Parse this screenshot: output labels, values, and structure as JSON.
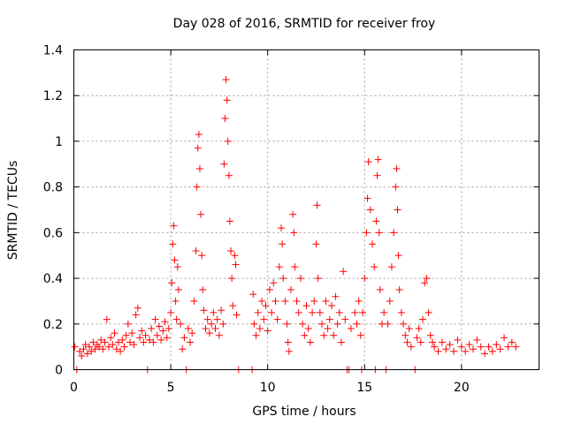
{
  "chart_data": {
    "type": "scatter",
    "title": "Day 028 of 2016, SRMTID for receiver froy",
    "xlabel": "GPS time / hours",
    "ylabel": "SRMTID / TECUs",
    "xlim": [
      0,
      24
    ],
    "ylim": [
      0,
      1.4
    ],
    "xticks": [
      0,
      5,
      10,
      15,
      20
    ],
    "xtick_labels": [
      "0",
      "5",
      "10",
      "15",
      "20"
    ],
    "yticks": [
      0,
      0.2,
      0.4,
      0.6,
      0.8,
      1.0,
      1.2,
      1.4
    ],
    "ytick_labels": [
      "0",
      "0.2",
      "0.4",
      "0.6",
      "0.8",
      "1",
      "1.2",
      "1.4"
    ],
    "grid": true,
    "marker": "plus",
    "color": "#ff0000",
    "series": [
      {
        "name": "SRMTID",
        "points": [
          [
            0.05,
            0.1
          ],
          [
            0.15,
            0.0
          ],
          [
            0.3,
            0.08
          ],
          [
            0.4,
            0.06
          ],
          [
            0.5,
            0.09
          ],
          [
            0.6,
            0.11
          ],
          [
            0.7,
            0.07
          ],
          [
            0.8,
            0.1
          ],
          [
            0.9,
            0.08
          ],
          [
            1.0,
            0.12
          ],
          [
            1.1,
            0.09
          ],
          [
            1.2,
            0.11
          ],
          [
            1.3,
            0.1
          ],
          [
            1.4,
            0.13
          ],
          [
            1.5,
            0.09
          ],
          [
            1.6,
            0.12
          ],
          [
            1.7,
            0.22
          ],
          [
            1.8,
            0.1
          ],
          [
            1.9,
            0.14
          ],
          [
            2.0,
            0.11
          ],
          [
            2.1,
            0.16
          ],
          [
            2.2,
            0.09
          ],
          [
            2.3,
            0.12
          ],
          [
            2.4,
            0.08
          ],
          [
            2.5,
            0.13
          ],
          [
            2.6,
            0.1
          ],
          [
            2.7,
            0.15
          ],
          [
            2.8,
            0.2
          ],
          [
            2.9,
            0.12
          ],
          [
            3.0,
            0.16
          ],
          [
            3.1,
            0.11
          ],
          [
            3.2,
            0.24
          ],
          [
            3.3,
            0.27
          ],
          [
            3.4,
            0.14
          ],
          [
            3.5,
            0.17
          ],
          [
            3.6,
            0.12
          ],
          [
            3.7,
            0.15
          ],
          [
            3.8,
            0.0
          ],
          [
            3.9,
            0.13
          ],
          [
            4.0,
            0.18
          ],
          [
            4.1,
            0.12
          ],
          [
            4.2,
            0.22
          ],
          [
            4.3,
            0.15
          ],
          [
            4.4,
            0.19
          ],
          [
            4.5,
            0.13
          ],
          [
            4.6,
            0.17
          ],
          [
            4.7,
            0.21
          ],
          [
            4.8,
            0.14
          ],
          [
            4.9,
            0.18
          ],
          [
            5.0,
            0.25
          ],
          [
            5.05,
            0.38
          ],
          [
            5.1,
            0.55
          ],
          [
            5.15,
            0.63
          ],
          [
            5.2,
            0.48
          ],
          [
            5.25,
            0.3
          ],
          [
            5.3,
            0.22
          ],
          [
            5.35,
            0.45
          ],
          [
            5.4,
            0.35
          ],
          [
            5.5,
            0.2
          ],
          [
            5.6,
            0.09
          ],
          [
            5.7,
            0.14
          ],
          [
            5.8,
            0.0
          ],
          [
            5.9,
            0.18
          ],
          [
            6.0,
            0.12
          ],
          [
            6.1,
            0.16
          ],
          [
            6.2,
            0.3
          ],
          [
            6.3,
            0.52
          ],
          [
            6.35,
            0.8
          ],
          [
            6.4,
            0.97
          ],
          [
            6.45,
            1.03
          ],
          [
            6.5,
            0.88
          ],
          [
            6.55,
            0.68
          ],
          [
            6.6,
            0.5
          ],
          [
            6.65,
            0.35
          ],
          [
            6.7,
            0.26
          ],
          [
            6.8,
            0.18
          ],
          [
            6.9,
            0.22
          ],
          [
            7.0,
            0.16
          ],
          [
            7.1,
            0.2
          ],
          [
            7.2,
            0.25
          ],
          [
            7.3,
            0.18
          ],
          [
            7.4,
            0.22
          ],
          [
            7.5,
            0.15
          ],
          [
            7.6,
            0.26
          ],
          [
            7.7,
            0.2
          ],
          [
            7.75,
            0.9
          ],
          [
            7.8,
            1.1
          ],
          [
            7.85,
            1.27
          ],
          [
            7.9,
            1.18
          ],
          [
            7.95,
            1.0
          ],
          [
            8.0,
            0.85
          ],
          [
            8.05,
            0.65
          ],
          [
            8.1,
            0.52
          ],
          [
            8.15,
            0.4
          ],
          [
            8.2,
            0.28
          ],
          [
            8.3,
            0.5
          ],
          [
            8.35,
            0.46
          ],
          [
            8.4,
            0.24
          ],
          [
            8.5,
            0.0
          ],
          [
            9.2,
            0.0
          ],
          [
            9.25,
            0.33
          ],
          [
            9.3,
            0.2
          ],
          [
            9.4,
            0.15
          ],
          [
            9.5,
            0.25
          ],
          [
            9.6,
            0.18
          ],
          [
            9.7,
            0.3
          ],
          [
            9.8,
            0.22
          ],
          [
            9.9,
            0.28
          ],
          [
            10.0,
            0.17
          ],
          [
            10.1,
            0.35
          ],
          [
            10.2,
            0.25
          ],
          [
            10.3,
            0.38
          ],
          [
            10.4,
            0.3
          ],
          [
            10.5,
            0.22
          ],
          [
            10.6,
            0.45
          ],
          [
            10.7,
            0.62
          ],
          [
            10.75,
            0.55
          ],
          [
            10.8,
            0.4
          ],
          [
            10.9,
            0.3
          ],
          [
            11.0,
            0.2
          ],
          [
            11.05,
            0.12
          ],
          [
            11.1,
            0.08
          ],
          [
            11.2,
            0.35
          ],
          [
            11.3,
            0.68
          ],
          [
            11.35,
            0.6
          ],
          [
            11.4,
            0.45
          ],
          [
            11.5,
            0.3
          ],
          [
            11.6,
            0.25
          ],
          [
            11.7,
            0.4
          ],
          [
            11.8,
            0.2
          ],
          [
            11.9,
            0.15
          ],
          [
            12.0,
            0.28
          ],
          [
            12.1,
            0.18
          ],
          [
            12.2,
            0.12
          ],
          [
            12.3,
            0.25
          ],
          [
            12.4,
            0.3
          ],
          [
            12.5,
            0.55
          ],
          [
            12.55,
            0.72
          ],
          [
            12.6,
            0.4
          ],
          [
            12.7,
            0.25
          ],
          [
            12.8,
            0.2
          ],
          [
            12.9,
            0.15
          ],
          [
            13.0,
            0.3
          ],
          [
            13.1,
            0.18
          ],
          [
            13.2,
            0.22
          ],
          [
            13.3,
            0.28
          ],
          [
            13.4,
            0.15
          ],
          [
            13.5,
            0.32
          ],
          [
            13.6,
            0.2
          ],
          [
            13.7,
            0.25
          ],
          [
            13.8,
            0.12
          ],
          [
            13.9,
            0.43
          ],
          [
            14.0,
            0.22
          ],
          [
            14.1,
            0.0
          ],
          [
            14.2,
            0.0
          ],
          [
            14.3,
            0.18
          ],
          [
            14.5,
            0.25
          ],
          [
            14.6,
            0.2
          ],
          [
            14.7,
            0.3
          ],
          [
            14.8,
            0.15
          ],
          [
            14.85,
            0.0
          ],
          [
            14.9,
            0.25
          ],
          [
            15.0,
            0.4
          ],
          [
            15.1,
            0.6
          ],
          [
            15.15,
            0.75
          ],
          [
            15.2,
            0.91
          ],
          [
            15.3,
            0.7
          ],
          [
            15.4,
            0.55
          ],
          [
            15.5,
            0.45
          ],
          [
            15.55,
            0.0
          ],
          [
            15.6,
            0.65
          ],
          [
            15.65,
            0.85
          ],
          [
            15.7,
            0.92
          ],
          [
            15.75,
            0.6
          ],
          [
            15.8,
            0.35
          ],
          [
            15.9,
            0.2
          ],
          [
            16.0,
            0.25
          ],
          [
            16.1,
            0.0
          ],
          [
            16.2,
            0.2
          ],
          [
            16.3,
            0.3
          ],
          [
            16.4,
            0.45
          ],
          [
            16.5,
            0.6
          ],
          [
            16.6,
            0.8
          ],
          [
            16.65,
            0.88
          ],
          [
            16.7,
            0.7
          ],
          [
            16.75,
            0.5
          ],
          [
            16.8,
            0.35
          ],
          [
            16.9,
            0.25
          ],
          [
            17.0,
            0.2
          ],
          [
            17.1,
            0.15
          ],
          [
            17.2,
            0.12
          ],
          [
            17.3,
            0.18
          ],
          [
            17.4,
            0.1
          ],
          [
            17.6,
            0.0
          ],
          [
            17.7,
            0.14
          ],
          [
            17.8,
            0.18
          ],
          [
            17.9,
            0.12
          ],
          [
            18.0,
            0.22
          ],
          [
            18.1,
            0.38
          ],
          [
            18.2,
            0.4
          ],
          [
            18.3,
            0.25
          ],
          [
            18.4,
            0.15
          ],
          [
            18.5,
            0.12
          ],
          [
            18.6,
            0.1
          ],
          [
            18.8,
            0.08
          ],
          [
            19.0,
            0.12
          ],
          [
            19.2,
            0.09
          ],
          [
            19.4,
            0.11
          ],
          [
            19.6,
            0.08
          ],
          [
            19.8,
            0.13
          ],
          [
            20.0,
            0.1
          ],
          [
            20.2,
            0.08
          ],
          [
            20.4,
            0.11
          ],
          [
            20.6,
            0.09
          ],
          [
            20.8,
            0.13
          ],
          [
            21.0,
            0.1
          ],
          [
            21.2,
            0.07
          ],
          [
            21.4,
            0.1
          ],
          [
            21.6,
            0.08
          ],
          [
            21.8,
            0.11
          ],
          [
            22.0,
            0.09
          ],
          [
            22.2,
            0.14
          ],
          [
            22.4,
            0.1
          ],
          [
            22.6,
            0.12
          ],
          [
            22.8,
            0.1
          ]
        ]
      }
    ]
  }
}
